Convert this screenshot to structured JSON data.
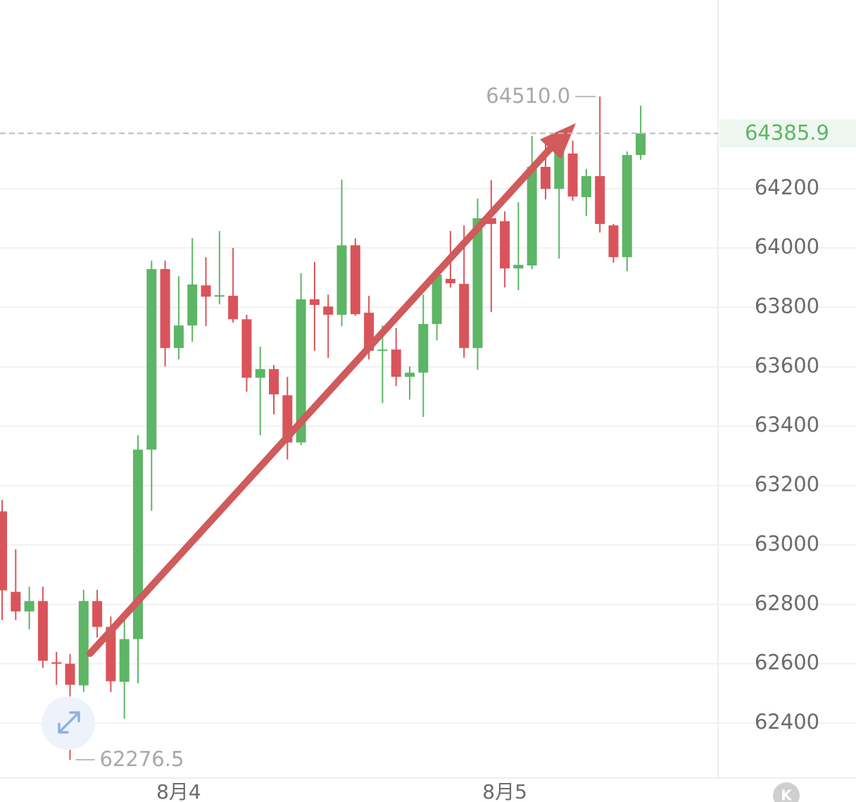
{
  "chart_data": {
    "type": "candlestick",
    "categories": [
      null,
      null,
      null,
      null,
      null,
      null,
      null,
      null,
      null,
      null,
      null,
      null,
      null,
      "8月4",
      null,
      null,
      null,
      null,
      null,
      null,
      null,
      null,
      null,
      null,
      null,
      null,
      null,
      null,
      null,
      null,
      null,
      null,
      null,
      null,
      null,
      null,
      null,
      "8月5",
      null,
      null,
      null,
      null,
      null,
      null,
      null,
      null,
      null,
      null
    ],
    "open": [
      63113,
      62842,
      62776,
      62811,
      62605,
      62600,
      62527,
      62811,
      62724,
      62539,
      62683,
      63321,
      63929,
      63663,
      63739,
      63874,
      63836,
      63839,
      63760,
      63563,
      63592,
      63504,
      63345,
      63827,
      63803,
      63775,
      64009,
      63782,
      63654,
      63658,
      63566,
      63580,
      63744,
      63896,
      63879,
      63663,
      64100,
      64090,
      63931,
      63941,
      64273,
      64199,
      64318,
      64171,
      64242,
      64076,
      63969,
      64313
    ],
    "high": [
      63151,
      62985,
      62859,
      62859,
      62640,
      62633,
      62849,
      62849,
      62759,
      62747,
      63369,
      63957,
      63957,
      63905,
      64033,
      63969,
      64057,
      64000,
      63775,
      63668,
      63606,
      63566,
      63915,
      63953,
      63843,
      64230,
      64033,
      63839,
      63739,
      63730,
      63601,
      63843,
      63934,
      64057,
      64076,
      64166,
      64228,
      64123,
      64154,
      64377,
      64349,
      64377,
      64361,
      64266,
      64510,
      64081,
      64325,
      64479
    ],
    "low": [
      62747,
      62747,
      62716,
      62586,
      62529,
      62276.5,
      62505,
      62688,
      62505,
      62415,
      62534,
      63115,
      63601,
      63625,
      63684,
      63737,
      63810,
      63749,
      63516,
      63369,
      63440,
      63288,
      63336,
      63654,
      63630,
      63737,
      63772,
      63625,
      63478,
      63535,
      63490,
      63431,
      63689,
      63867,
      63630,
      63590,
      63784,
      63867,
      63858,
      63929,
      64164,
      63964,
      64159,
      64107,
      64052,
      63950,
      63922,
      64297
    ],
    "close": [
      62847,
      62776,
      62811,
      62610,
      62600,
      62529,
      62811,
      62724,
      62541,
      62683,
      63321,
      63929,
      63663,
      63739,
      63877,
      63836,
      63841,
      63760,
      63563,
      63592,
      63507,
      63345,
      63827,
      63808,
      63775,
      64009,
      63777,
      63654,
      63658,
      63566,
      63580,
      63744,
      63910,
      63881,
      63663,
      64100,
      64081,
      63931,
      63943,
      64273,
      64199,
      64330,
      64173,
      64242,
      64081,
      63969,
      64313,
      64385.9
    ],
    "up_color": "#5db565",
    "down_color": "#d9545a",
    "ylim": [
      62215,
      64835
    ],
    "yticks": [
      62400,
      62600,
      62800,
      63000,
      63200,
      63400,
      63600,
      63800,
      64000,
      64200
    ],
    "grid": true,
    "high_marker": {
      "value": 64510,
      "label": "64510.0"
    },
    "low_marker": 62276.5,
    "last_price": 64385.9
  },
  "toolbar": {
    "k_button": "K"
  }
}
